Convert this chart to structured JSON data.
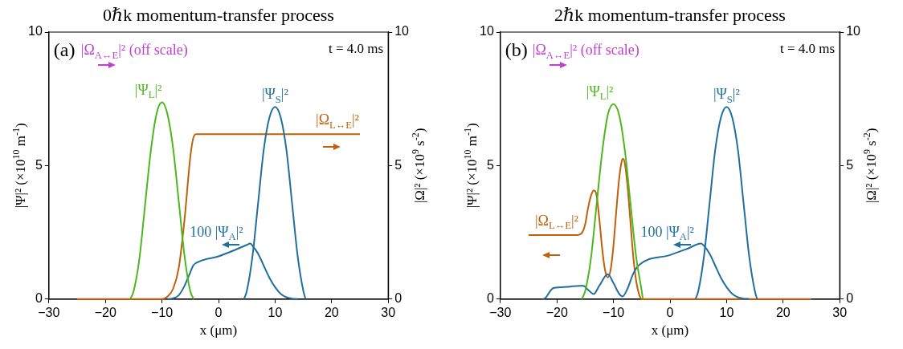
{
  "chart_data": [
    {
      "type": "line",
      "title": "0ℏk momentum-transfer process",
      "xlabel": "x (μm)",
      "ylabel": "|Ψ|² (×10$^{10}$ m$^{-1}$)",
      "y2label": "|Ω|² (×10$^{9}$ s$^{-2}$)",
      "annotations": [
        "(a)",
        "|Ω$_{A↔E}$|² (off scale)",
        "t = 4.0 ms"
      ],
      "xlim": [
        -30,
        30
      ],
      "xticks": [
        -30,
        -20,
        -10,
        0,
        10,
        20,
        30
      ],
      "ylim": [
        0,
        10
      ],
      "yticks": [
        0,
        5,
        10
      ],
      "y2lim": [
        0,
        10
      ],
      "y2ticks": [
        0,
        5,
        10
      ],
      "marker": "none",
      "line_style": "solid",
      "series": [
        {
          "name": "|Ψ$_{L}$|²",
          "color": "#4cb81e",
          "x": [
            -15.6,
            -15,
            -14,
            -13,
            -12,
            -11,
            -10,
            -9,
            -8,
            -7,
            -6,
            -5,
            -4.4
          ],
          "values": [
            0,
            0.3,
            1.5,
            3.5,
            5.5,
            6.9,
            7.37,
            6.9,
            5.6,
            3.6,
            1.6,
            0.3,
            0
          ]
        },
        {
          "name": "|Ψ$_{S}$|²",
          "color": "#1f6f9f",
          "x": [
            4.5,
            5,
            6,
            7,
            8,
            9,
            10,
            11,
            12,
            13,
            14,
            15,
            15.4
          ],
          "values": [
            0,
            0.3,
            1.6,
            3.6,
            5.6,
            6.8,
            7.2,
            6.8,
            5.6,
            3.6,
            1.6,
            0.3,
            0
          ]
        },
        {
          "name": "100 |Ψ$_{A}$|²",
          "color": "#1f6f9f",
          "x": [
            -9,
            -8,
            -7,
            -6,
            -5,
            -4.5,
            -4,
            0,
            3,
            5,
            5.6,
            6,
            7,
            8,
            9,
            10,
            11,
            12,
            13,
            14
          ],
          "values": [
            0,
            0.03,
            0.15,
            0.5,
            1.0,
            1.25,
            1.35,
            1.6,
            1.85,
            2.03,
            2.08,
            2.0,
            1.7,
            1.25,
            0.8,
            0.45,
            0.2,
            0.07,
            0.02,
            0
          ]
        },
        {
          "name": "|Ω$_{L↔E}$|²",
          "color": "#c0600a",
          "axis": "y2",
          "x": [
            -25,
            -10,
            -9,
            -8,
            -7,
            -6,
            -5,
            -4.5,
            -4,
            25
          ],
          "values": [
            0,
            0,
            0.1,
            0.4,
            1.2,
            3.0,
            5.3,
            6.0,
            6.18,
            6.18
          ]
        }
      ]
    },
    {
      "type": "line",
      "title": "2ℏk momentum-transfer process",
      "xlabel": "x (μm)",
      "ylabel": "|Ψ|² (×10$^{10}$ m$^{-1}$)",
      "y2label": "|Ω|² (×10$^{9}$ s$^{-2}$)",
      "annotations": [
        "(b)",
        "|Ω$_{A↔E}$|² (off scale)",
        "t = 4.0 ms"
      ],
      "xlim": [
        -30,
        30
      ],
      "xticks": [
        -30,
        -20,
        -10,
        0,
        10,
        20,
        30
      ],
      "ylim": [
        0,
        10
      ],
      "yticks": [
        0,
        5,
        10
      ],
      "y2lim": [
        0,
        10
      ],
      "y2ticks": [
        0,
        5,
        10
      ],
      "marker": "none",
      "line_style": "solid",
      "series": [
        {
          "name": "|Ψ$_{L}$|²",
          "color": "#4cb81e",
          "x": [
            -15.6,
            -15,
            -14,
            -13,
            -12,
            -11,
            -10,
            -9,
            -8,
            -7,
            -6,
            -5,
            -4.8
          ],
          "values": [
            0,
            0.3,
            1.5,
            3.5,
            5.5,
            6.9,
            7.3,
            6.9,
            5.6,
            3.6,
            1.6,
            0.3,
            0
          ]
        },
        {
          "name": "|Ψ$_{S}$|²",
          "color": "#1f6f9f",
          "x": [
            4.5,
            5,
            6,
            7,
            8,
            9,
            10,
            11,
            12,
            13,
            14,
            15,
            15.4
          ],
          "values": [
            0,
            0.3,
            1.6,
            3.6,
            5.6,
            6.8,
            7.2,
            6.8,
            5.6,
            3.6,
            1.6,
            0.3,
            0
          ]
        },
        {
          "name": "100 |Ψ$_{A}$|²",
          "color": "#1f6f9f",
          "x": [
            -22.5,
            -22,
            -21.5,
            -21,
            -20.5,
            -18,
            -16,
            -15.3,
            -14.5,
            -13.5,
            -12.5,
            -11,
            -10,
            -9,
            -8.4,
            -7.5,
            -6.5,
            -5.5,
            0,
            3,
            5.5,
            6,
            7,
            8,
            9,
            10,
            11,
            12,
            13,
            14
          ],
          "values": [
            0,
            0.05,
            0.2,
            0.35,
            0.42,
            0.46,
            0.5,
            0.5,
            0.35,
            0.19,
            0.5,
            0.93,
            0.6,
            0.2,
            0.1,
            0.4,
            0.95,
            1.27,
            1.65,
            1.88,
            2.08,
            2.0,
            1.7,
            1.25,
            0.8,
            0.45,
            0.2,
            0.07,
            0.02,
            0
          ]
        },
        {
          "name": "|Ω$_{L↔E}$|²",
          "color": "#c0600a",
          "axis": "y2",
          "x": [
            -25,
            -16.3,
            -15.5,
            -15,
            -14.5,
            -14,
            -13.5,
            -13,
            -12.5,
            -12,
            -11.5,
            -11,
            -10.5,
            -10,
            -9.5,
            -9,
            -8.5,
            -8.3,
            -8,
            -7.5,
            -7,
            -6.5,
            -6,
            -5.5,
            -5,
            25
          ],
          "values": [
            2.4,
            2.4,
            2.5,
            2.8,
            3.4,
            3.85,
            4.07,
            3.9,
            3.0,
            1.9,
            1.1,
            0.81,
            1.1,
            2.0,
            3.3,
            4.5,
            5.2,
            5.26,
            5.1,
            4.2,
            2.9,
            1.6,
            0.7,
            0.2,
            0,
            0
          ]
        }
      ]
    }
  ]
}
